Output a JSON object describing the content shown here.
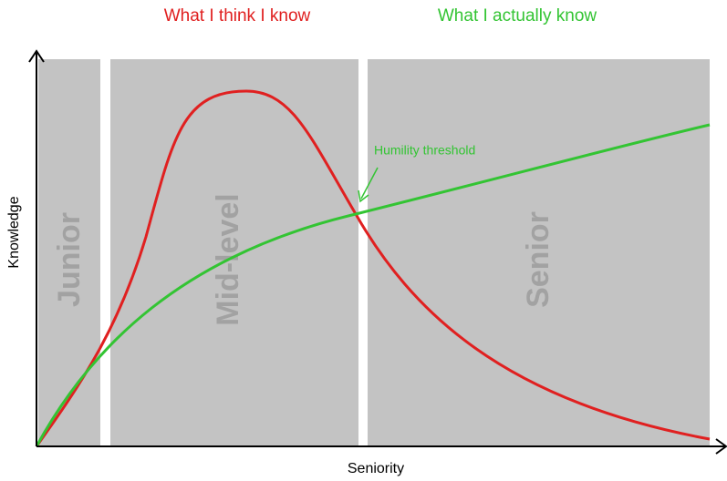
{
  "titles": {
    "think": "What I think I know",
    "actual": "What I actually know"
  },
  "annotation": "Humility threshold",
  "axes": {
    "y": "Knowledge",
    "x": "Seniority"
  },
  "bands": [
    "Junior",
    "Mid-level",
    "Senior"
  ]
}
